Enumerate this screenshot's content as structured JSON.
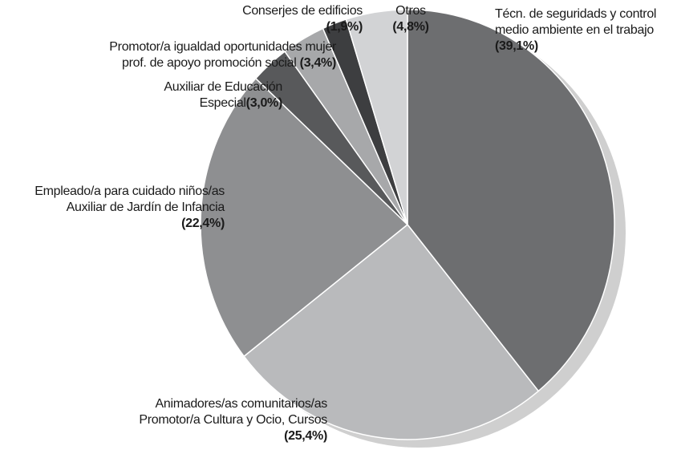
{
  "chart_data": {
    "type": "pie",
    "categories": [
      "Técn. de seguridads y control\nmedio ambiente en el trabajo",
      "Animadores/as comunitarios/as\nPromotor/a Cultura y Ocio, Cursos",
      "Empleado/a para cuidado niños/as\nAuxiliar de Jardín de Infancia",
      "Auxiliar de Educación\nEspecial",
      "Promotor/a igualdad oportunidades mujer\nprof. de apoyo promoción social",
      "Conserjes de edificios",
      "Otros"
    ],
    "values": [
      39.1,
      25.4,
      22.4,
      3.0,
      3.4,
      1.9,
      4.8
    ],
    "value_labels": [
      "(39,1%)",
      "(25,4%)",
      "(22,4%)",
      "(3,0%)",
      "(3,4%)",
      "(1,9%)",
      "(4,8%)"
    ],
    "colors": [
      "#6d6e70",
      "#b9babc",
      "#8e8f91",
      "#58595b",
      "#a7a8aa",
      "#3d3e40",
      "#d2d3d5"
    ]
  }
}
